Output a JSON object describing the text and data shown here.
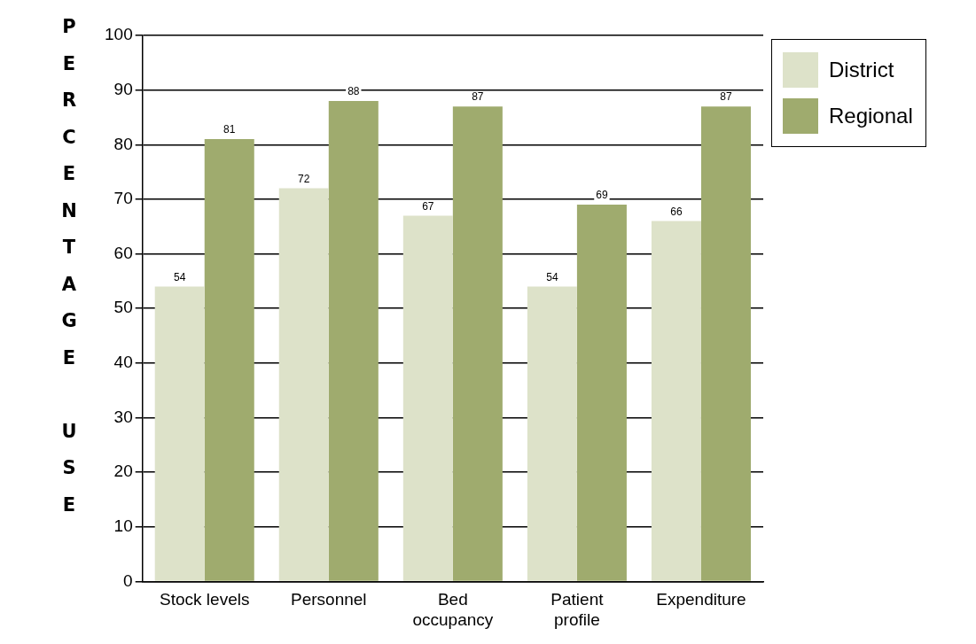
{
  "chart_data": {
    "type": "bar",
    "ylabel": "PERCENTAGE USE",
    "categories": [
      "Stock levels",
      "Personnel",
      "Bed occupancy",
      "Patient profile",
      "Expenditure"
    ],
    "series": [
      {
        "name": "District",
        "color": "#dde2c9",
        "values": [
          54,
          72,
          67,
          54,
          66
        ]
      },
      {
        "name": "Regional",
        "color": "#9fab6e",
        "values": [
          81,
          88,
          87,
          69,
          87
        ]
      }
    ],
    "ylim": [
      0,
      100
    ],
    "yticks": [
      0,
      10,
      20,
      30,
      40,
      50,
      60,
      70,
      80,
      90,
      100
    ],
    "grid": "y",
    "legend": "top right",
    "data_labels": true
  }
}
